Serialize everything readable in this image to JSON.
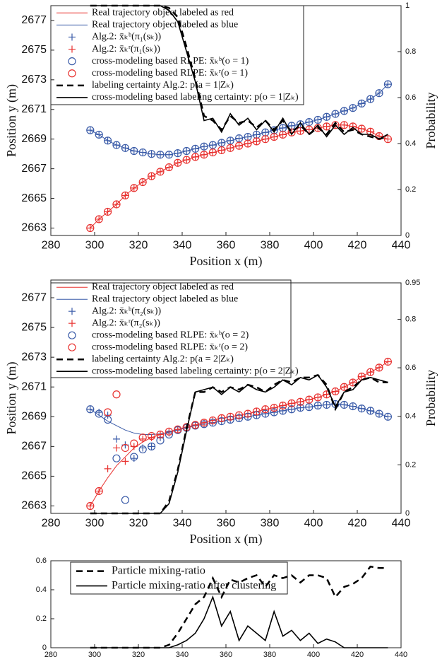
{
  "chart_data": [
    {
      "type": "line",
      "xlabel": "Position x (m)",
      "ylabel": "Position y (m)",
      "y2label": "Probability",
      "legend": "upper left",
      "xlim": [
        280,
        440
      ],
      "xticks": [
        280,
        300,
        320,
        340,
        360,
        380,
        400,
        420,
        440
      ],
      "ylim": [
        2662.5,
        2678
      ],
      "yticks": [
        2663,
        2665,
        2667,
        2669,
        2671,
        2673,
        2675,
        2677
      ],
      "y2lim": [
        0,
        1
      ],
      "y2ticks": [
        0,
        0.2,
        0.4,
        0.6,
        0.8,
        1
      ],
      "x": [
        298,
        302,
        306,
        310,
        314,
        318,
        322,
        326,
        330,
        334,
        338,
        342,
        346,
        350,
        354,
        358,
        362,
        366,
        370,
        374,
        378,
        382,
        386,
        390,
        394,
        398,
        402,
        406,
        410,
        414,
        418,
        422,
        426,
        430,
        434
      ],
      "series": [
        {
          "name": "Real trajectory object labeled as red",
          "color": "#e8312f",
          "linestyle": "-",
          "marker": "none",
          "axis": "y",
          "values": [
            2663.0,
            2663.6,
            2664.1,
            2664.6,
            2665.2,
            2665.7,
            2666.1,
            2666.5,
            2666.8,
            2667.1,
            2667.4,
            2667.6,
            2667.8,
            2667.95,
            2668.1,
            2668.25,
            2668.4,
            2668.55,
            2668.7,
            2668.85,
            2669.0,
            2669.15,
            2669.3,
            2669.45,
            2669.55,
            2669.65,
            2669.75,
            2669.85,
            2669.95,
            2669.95,
            2669.85,
            2669.7,
            2669.5,
            2669.2,
            2669.0
          ]
        },
        {
          "name": "Real trajectory object labeled as blue",
          "color": "#3a5ba8",
          "linestyle": "-",
          "marker": "none",
          "axis": "y",
          "values": [
            2669.6,
            2669.3,
            2668.9,
            2668.6,
            2668.4,
            2668.2,
            2668.1,
            2668.0,
            2667.95,
            2667.95,
            2668.05,
            2668.2,
            2668.35,
            2668.5,
            2668.6,
            2668.75,
            2668.9,
            2669.05,
            2669.15,
            2669.3,
            2669.45,
            2669.6,
            2669.75,
            2669.9,
            2670.0,
            2670.15,
            2670.3,
            2670.5,
            2670.7,
            2670.9,
            2671.1,
            2671.4,
            2671.7,
            2672.1,
            2672.7
          ]
        },
        {
          "name": "Alg.2: x̄ₖᵇ(π₁(sₖ))",
          "color": "#3a5ba8",
          "linestyle": "none",
          "marker": "+",
          "axis": "y",
          "values": [
            2669.6,
            2669.3,
            2668.9,
            2668.6,
            2668.4,
            2668.2,
            2668.1,
            2668.0,
            2667.95,
            2667.95,
            2668.05,
            2668.2,
            2668.35,
            2668.5,
            2668.6,
            2668.75,
            2668.9,
            2669.05,
            2669.15,
            2669.3,
            2669.45,
            2669.6,
            2669.75,
            2669.9,
            2670.0,
            2670.15,
            2670.3,
            2670.5,
            2670.7,
            2670.9,
            2671.1,
            2671.4,
            2671.7,
            2672.1,
            2672.7
          ]
        },
        {
          "name": "Alg.2: x̄ₖʳ(π₁(sₖ))",
          "color": "#e8312f",
          "linestyle": "none",
          "marker": "+",
          "axis": "y",
          "values": [
            2663.0,
            2663.6,
            2664.1,
            2664.6,
            2665.2,
            2665.7,
            2666.1,
            2666.5,
            2666.8,
            2667.1,
            2667.4,
            2667.6,
            2667.8,
            2667.95,
            2668.1,
            2668.25,
            2668.4,
            2668.55,
            2668.7,
            2668.85,
            2669.0,
            2669.15,
            2669.3,
            2669.45,
            2669.55,
            2669.65,
            2669.75,
            2669.85,
            2669.95,
            2669.95,
            2669.85,
            2669.7,
            2669.5,
            2669.2,
            2669.0
          ]
        },
        {
          "name": "cross-modeling based RLPE: x̄ₖᵇ(o = 1)",
          "color": "#3a5ba8",
          "linestyle": "none",
          "marker": "o",
          "axis": "y",
          "values": [
            2669.6,
            2669.3,
            2668.9,
            2668.6,
            2668.4,
            2668.2,
            2668.1,
            2668.0,
            2667.95,
            2667.95,
            2668.05,
            2668.2,
            2668.35,
            2668.5,
            2668.6,
            2668.75,
            2668.9,
            2669.05,
            2669.15,
            2669.3,
            2669.45,
            2669.6,
            2669.75,
            2669.9,
            2670.0,
            2670.15,
            2670.3,
            2670.5,
            2670.7,
            2670.9,
            2671.1,
            2671.4,
            2671.7,
            2672.1,
            2672.7
          ]
        },
        {
          "name": "cross-modeling based RLPE: x̄ₖʳ(o = 1)",
          "color": "#e8312f",
          "linestyle": "none",
          "marker": "o",
          "axis": "y",
          "values": [
            2663.0,
            2663.6,
            2664.1,
            2664.6,
            2665.2,
            2665.7,
            2666.1,
            2666.5,
            2666.8,
            2667.1,
            2667.4,
            2667.6,
            2667.8,
            2667.95,
            2668.1,
            2668.25,
            2668.4,
            2668.55,
            2668.7,
            2668.85,
            2669.0,
            2669.15,
            2669.3,
            2669.45,
            2669.55,
            2669.65,
            2669.75,
            2669.85,
            2669.95,
            2669.95,
            2669.85,
            2669.7,
            2669.5,
            2669.2,
            2669.0
          ]
        },
        {
          "name": "labeling certainty Alg.2: p(a = 1|Zₖ)",
          "color": "#000000",
          "linestyle": "--",
          "marker": "none",
          "axis": "y2",
          "values": [
            1,
            1,
            1,
            1,
            1,
            1,
            1,
            1,
            1,
            0.99,
            0.95,
            0.82,
            0.68,
            0.52,
            0.5,
            0.46,
            0.52,
            0.49,
            0.5,
            0.47,
            0.5,
            0.46,
            0.5,
            0.45,
            0.48,
            0.44,
            0.47,
            0.44,
            0.49,
            0.45,
            0.46,
            0.44,
            0.43,
            0.42,
            0.43
          ]
        },
        {
          "name": "cross-modeling based labeling certainty: p(o = 1|Zₖ)",
          "color": "#000000",
          "linestyle": "-",
          "marker": "none",
          "axis": "y2",
          "values": [
            1,
            1,
            1,
            1,
            1,
            1,
            1,
            1,
            1,
            0.98,
            0.93,
            0.8,
            0.67,
            0.5,
            0.51,
            0.45,
            0.53,
            0.48,
            0.51,
            0.46,
            0.5,
            0.45,
            0.51,
            0.44,
            0.49,
            0.44,
            0.48,
            0.43,
            0.48,
            0.44,
            0.47,
            0.44,
            0.44,
            0.42,
            0.44
          ]
        }
      ]
    },
    {
      "type": "line",
      "xlabel": "Position x (m)",
      "ylabel": "Position y (m)",
      "y2label": "Probability",
      "legend": "upper left",
      "xlim": [
        280,
        440
      ],
      "xticks": [
        280,
        300,
        320,
        340,
        360,
        380,
        400,
        420,
        440
      ],
      "ylim": [
        2662.5,
        2678
      ],
      "yticks": [
        2663,
        2665,
        2667,
        2669,
        2671,
        2673,
        2675,
        2677
      ],
      "y2lim": [
        0,
        0.95
      ],
      "y2ticks": [
        0,
        0.2,
        0.4,
        0.6,
        0.8,
        0.95
      ],
      "x": [
        298,
        302,
        306,
        310,
        314,
        318,
        322,
        326,
        330,
        334,
        338,
        342,
        346,
        350,
        354,
        358,
        362,
        366,
        370,
        374,
        378,
        382,
        386,
        390,
        394,
        398,
        402,
        406,
        410,
        414,
        418,
        422,
        426,
        430,
        434
      ],
      "series": [
        {
          "name": "Real trajectory object labeled as red",
          "color": "#e8312f",
          "linestyle": "-",
          "marker": "none",
          "axis": "y",
          "values": [
            2663.0,
            2664.0,
            2664.9,
            2665.7,
            2666.3,
            2666.9,
            2667.3,
            2667.6,
            2667.8,
            2668.0,
            2668.15,
            2668.3,
            2668.45,
            2668.6,
            2668.75,
            2668.9,
            2669.0,
            2669.1,
            2669.2,
            2669.35,
            2669.5,
            2669.6,
            2669.75,
            2669.9,
            2670.0,
            2670.15,
            2670.3,
            2670.5,
            2670.7,
            2671.0,
            2671.3,
            2671.7,
            2672.0,
            2672.3,
            2672.7
          ]
        },
        {
          "name": "Real trajectory object labeled as blue",
          "color": "#3a5ba8",
          "linestyle": "-",
          "marker": "none",
          "axis": "y",
          "values": [
            2669.5,
            2669.1,
            2668.7,
            2668.4,
            2668.1,
            2667.9,
            2667.8,
            2667.8,
            2667.85,
            2667.95,
            2668.1,
            2668.25,
            2668.4,
            2668.5,
            2668.6,
            2668.7,
            2668.8,
            2668.9,
            2669.0,
            2669.1,
            2669.2,
            2669.3,
            2669.4,
            2669.5,
            2669.6,
            2669.65,
            2669.75,
            2669.8,
            2669.85,
            2669.8,
            2669.7,
            2669.55,
            2669.4,
            2669.2,
            2669.0
          ]
        },
        {
          "name": "Alg.2: x̄ₖᵇ(π₂(sₖ))",
          "color": "#3a5ba8",
          "linestyle": "none",
          "marker": "+",
          "axis": "y",
          "values": [
            2669.5,
            2669.3,
            2669.1,
            2667.5,
            2667.1,
            2666.2,
            2666.9,
            2667.0,
            2667.6,
            2667.9,
            2668.1,
            2668.25,
            2668.4,
            2668.5,
            2668.6,
            2668.7,
            2668.8,
            2668.9,
            2669.0,
            2669.1,
            2669.2,
            2669.3,
            2669.4,
            2669.5,
            2669.6,
            2669.65,
            2669.75,
            2669.8,
            2669.85,
            2669.8,
            2669.7,
            2669.55,
            2669.4,
            2669.2,
            2669.0
          ]
        },
        {
          "name": "Alg.2: x̄ₖʳ(π₂(sₖ))",
          "color": "#e8312f",
          "linestyle": "none",
          "marker": "+",
          "axis": "y",
          "values": [
            2663.0,
            2664.0,
            2665.5,
            2666.9,
            2666.0,
            2667.0,
            2667.5,
            2667.6,
            2667.8,
            2668.0,
            2668.15,
            2668.3,
            2668.45,
            2668.6,
            2668.75,
            2668.9,
            2669.0,
            2669.1,
            2669.2,
            2669.35,
            2669.5,
            2669.6,
            2669.75,
            2669.9,
            2670.0,
            2670.15,
            2670.3,
            2670.5,
            2670.7,
            2671.0,
            2671.3,
            2671.7,
            2672.0,
            2672.3,
            2672.7
          ]
        },
        {
          "name": "cross-modeling based RLPE: x̄ₖᵇ(o = 2)",
          "color": "#3a5ba8",
          "linestyle": "none",
          "marker": "o",
          "axis": "y",
          "values": [
            2669.5,
            2669.2,
            2668.8,
            2666.2,
            2663.4,
            2666.3,
            2666.8,
            2667.0,
            2667.4,
            2667.8,
            2668.1,
            2668.25,
            2668.4,
            2668.5,
            2668.6,
            2668.7,
            2668.8,
            2668.9,
            2669.0,
            2669.1,
            2669.2,
            2669.3,
            2669.4,
            2669.5,
            2669.6,
            2669.65,
            2669.75,
            2669.8,
            2669.85,
            2669.8,
            2669.7,
            2669.55,
            2669.4,
            2669.2,
            2669.0
          ]
        },
        {
          "name": "cross-modeling based RLPE: x̄ₖʳ(o = 2)",
          "color": "#e8312f",
          "linestyle": "none",
          "marker": "o",
          "axis": "y",
          "values": [
            2663.0,
            2664.0,
            2669.3,
            2670.5,
            2666.9,
            2667.2,
            2667.6,
            2667.7,
            2667.8,
            2668.0,
            2668.15,
            2668.3,
            2668.45,
            2668.6,
            2668.75,
            2668.9,
            2669.0,
            2669.1,
            2669.2,
            2669.35,
            2669.5,
            2669.6,
            2669.75,
            2669.9,
            2670.0,
            2670.15,
            2670.3,
            2670.5,
            2670.7,
            2671.0,
            2671.3,
            2671.7,
            2672.0,
            2672.3,
            2672.7
          ]
        },
        {
          "name": "labeling certainty Alg.2: p(a = 2|Zₖ)",
          "color": "#000000",
          "linestyle": "--",
          "marker": "none",
          "axis": "y2",
          "values": [
            0,
            0,
            0,
            0,
            0,
            0,
            0,
            0,
            0.0,
            0.05,
            0.18,
            0.35,
            0.5,
            0.5,
            0.52,
            0.5,
            0.52,
            0.51,
            0.53,
            0.52,
            0.5,
            0.53,
            0.55,
            0.54,
            0.56,
            0.56,
            0.57,
            0.53,
            0.43,
            0.5,
            0.52,
            0.55,
            0.56,
            0.54,
            0.54
          ]
        },
        {
          "name": "cross-modeling based labeling certainty: p(o = 2|Zₖ)",
          "color": "#000000",
          "linestyle": "-",
          "marker": "none",
          "axis": "y2",
          "values": [
            0,
            0,
            0,
            0,
            0,
            0,
            0,
            0,
            0.0,
            0.04,
            0.17,
            0.34,
            0.5,
            0.51,
            0.52,
            0.49,
            0.52,
            0.5,
            0.53,
            0.51,
            0.5,
            0.52,
            0.55,
            0.53,
            0.56,
            0.55,
            0.57,
            0.52,
            0.44,
            0.5,
            0.51,
            0.55,
            0.56,
            0.55,
            0.54
          ]
        }
      ]
    },
    {
      "type": "line",
      "legend": "upper left",
      "xlim": [
        280,
        440
      ],
      "xticks": [
        280,
        300,
        320,
        340,
        360,
        380,
        400,
        420,
        440
      ],
      "ylim": [
        0,
        0.6
      ],
      "yticks": [
        0,
        0.2,
        0.4,
        0.6
      ],
      "x": [
        298,
        302,
        306,
        310,
        314,
        318,
        322,
        326,
        330,
        334,
        338,
        342,
        346,
        350,
        354,
        358,
        362,
        366,
        370,
        374,
        378,
        382,
        386,
        390,
        394,
        398,
        402,
        406,
        410,
        414,
        418,
        422,
        426,
        430,
        434
      ],
      "series": [
        {
          "name": "Particle mixing-ratio",
          "color": "#000000",
          "linestyle": "--",
          "marker": "none",
          "axis": "y",
          "values": [
            0,
            0,
            0,
            0,
            0,
            0,
            0,
            0,
            0,
            0.02,
            0.1,
            0.2,
            0.3,
            0.35,
            0.48,
            0.35,
            0.47,
            0.45,
            0.48,
            0.5,
            0.42,
            0.5,
            0.48,
            0.5,
            0.45,
            0.5,
            0.5,
            0.48,
            0.35,
            0.42,
            0.44,
            0.48,
            0.56,
            0.55,
            0.55
          ]
        },
        {
          "name": "Particle mixing-ratio after clustering",
          "color": "#000000",
          "linestyle": "-",
          "marker": "none",
          "axis": "y",
          "values": [
            0,
            0,
            0,
            0,
            0,
            0,
            0,
            0,
            0,
            0.0,
            0.02,
            0.05,
            0.1,
            0.2,
            0.35,
            0.15,
            0.25,
            0.05,
            0.15,
            0.1,
            0.05,
            0.25,
            0.08,
            0.12,
            0.05,
            0.1,
            0.03,
            0.06,
            0.04,
            0,
            0,
            0,
            0,
            0,
            0
          ]
        }
      ]
    }
  ]
}
